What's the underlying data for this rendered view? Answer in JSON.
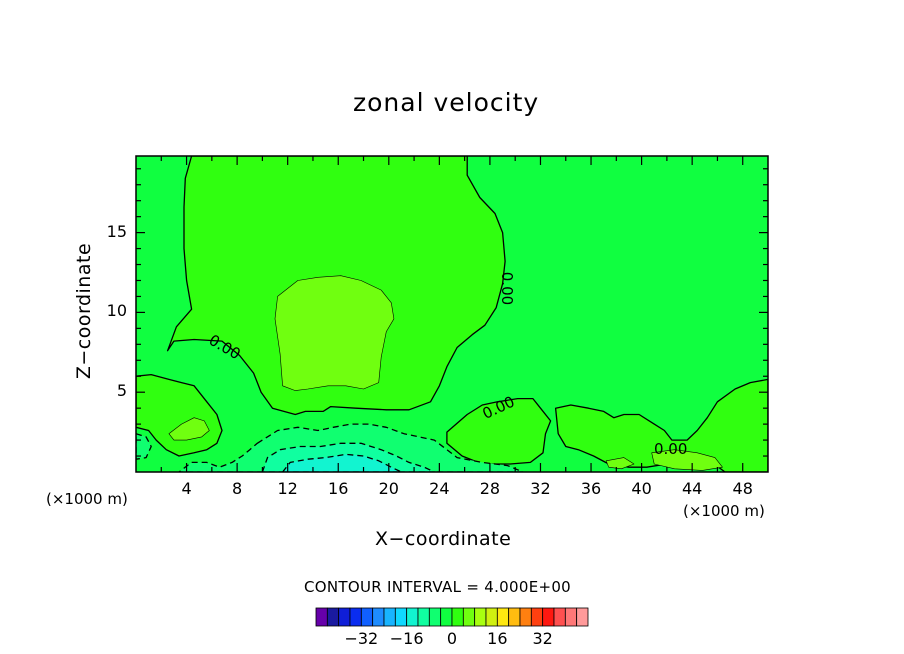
{
  "chart_data": {
    "type": "contour",
    "title": "zonal velocity",
    "xlabel": "X−coordinate",
    "ylabel": "Z−coordinate",
    "x_unit": "(×1000 m)",
    "z_unit": "(×1000 m)",
    "xlim": [
      0,
      50
    ],
    "ylim": [
      0,
      19.8
    ],
    "x_ticks": [
      "4",
      "8",
      "12",
      "16",
      "20",
      "24",
      "28",
      "32",
      "36",
      "40",
      "44",
      "48"
    ],
    "x_tick_values": [
      4,
      8,
      12,
      16,
      20,
      24,
      28,
      32,
      36,
      40,
      44,
      48
    ],
    "y_ticks": [
      "5",
      "10",
      "15"
    ],
    "y_tick_values": [
      5,
      10,
      15
    ],
    "contour_interval_label": "CONTOUR INTERVAL =  4.000E+00",
    "contour_interval": 4.0,
    "contour_labels": [
      {
        "text": "0.00",
        "x": 7.0,
        "z": 7.8,
        "rotate": 30
      },
      {
        "text": "0.00",
        "x": 29.3,
        "z": 11.5,
        "rotate": 90
      },
      {
        "text": "0.00",
        "x": 28.7,
        "z": 4.0,
        "rotate": -25
      },
      {
        "text": "0.00",
        "x": 42.3,
        "z": 1.4,
        "rotate": 0
      }
    ],
    "colorbar": {
      "colors": [
        "#6600aa",
        "#1a1aa0",
        "#0f1ed8",
        "#0a2df0",
        "#1060ff",
        "#1e8cff",
        "#18b4ff",
        "#10d8ff",
        "#12f4d0",
        "#10ffa0",
        "#10ff70",
        "#10ff40",
        "#30ff10",
        "#70ff10",
        "#a8ff10",
        "#d0f010",
        "#ffe810",
        "#ffbc10",
        "#ff8010",
        "#ff4010",
        "#ff1810",
        "#ff5050",
        "#ff7878",
        "#ff9a9a"
      ],
      "tick_labels": [
        "−32",
        "−16",
        "0",
        "16",
        "32"
      ],
      "tick_values": [
        -32,
        -16,
        0,
        16,
        32
      ],
      "vmin": -48,
      "vmax": 48
    },
    "regions": [
      {
        "level": 0,
        "color": "#10ff40",
        "contour": "background"
      },
      {
        "level": 4,
        "color": "#30ff10",
        "contour": "solid",
        "points": [
          [
            4.4,
            19.8
          ],
          [
            26.2,
            19.8
          ],
          [
            26.2,
            18.6
          ],
          [
            27.2,
            17.2
          ],
          [
            28.4,
            16.2
          ],
          [
            29.0,
            15.0
          ],
          [
            29.2,
            13.2
          ],
          [
            29.0,
            11.8
          ],
          [
            28.5,
            10.3
          ],
          [
            27.6,
            9.2
          ],
          [
            26.6,
            8.6
          ],
          [
            25.4,
            7.8
          ],
          [
            24.6,
            6.6
          ],
          [
            24.0,
            5.4
          ],
          [
            23.3,
            4.4
          ],
          [
            21.6,
            3.9
          ],
          [
            19.8,
            3.9
          ],
          [
            17.4,
            4.0
          ],
          [
            15.4,
            4.1
          ],
          [
            14.8,
            3.8
          ],
          [
            13.4,
            3.8
          ],
          [
            12.6,
            3.6
          ],
          [
            10.8,
            4.0
          ],
          [
            9.9,
            5.0
          ],
          [
            9.3,
            6.2
          ],
          [
            8.2,
            7.3
          ],
          [
            6.8,
            8.2
          ],
          [
            4.6,
            8.3
          ],
          [
            3.0,
            8.2
          ],
          [
            2.5,
            7.6
          ],
          [
            3.2,
            9.1
          ],
          [
            4.4,
            10.2
          ],
          [
            4.0,
            12.0
          ],
          [
            3.8,
            14.0
          ],
          [
            3.8,
            16.6
          ],
          [
            3.9,
            18.4
          ]
        ]
      },
      {
        "level": 8,
        "color": "#70ff10",
        "contour": "solid",
        "points": [
          [
            11.2,
            11.0
          ],
          [
            12.8,
            12.0
          ],
          [
            14.4,
            12.2
          ],
          [
            16.2,
            12.3
          ],
          [
            17.8,
            12.0
          ],
          [
            19.4,
            11.4
          ],
          [
            20.2,
            10.6
          ],
          [
            20.4,
            9.6
          ],
          [
            19.8,
            8.8
          ],
          [
            19.4,
            7.2
          ],
          [
            19.2,
            5.6
          ],
          [
            18.0,
            5.2
          ],
          [
            16.6,
            5.4
          ],
          [
            15.2,
            5.4
          ],
          [
            13.6,
            5.2
          ],
          [
            12.6,
            5.1
          ],
          [
            11.6,
            5.4
          ],
          [
            11.4,
            7.4
          ],
          [
            11.0,
            9.6
          ]
        ]
      },
      {
        "level": 4,
        "color": "#30ff10",
        "contour": "solid",
        "points": [
          [
            0,
            6.0
          ],
          [
            1.2,
            6.1
          ],
          [
            2.6,
            5.8
          ],
          [
            3.6,
            5.6
          ],
          [
            4.6,
            5.4
          ],
          [
            5.6,
            4.4
          ],
          [
            6.4,
            3.6
          ],
          [
            6.8,
            2.6
          ],
          [
            6.4,
            1.8
          ],
          [
            5.6,
            1.4
          ],
          [
            4.6,
            1.2
          ],
          [
            3.4,
            1.0
          ],
          [
            2.4,
            1.4
          ],
          [
            1.6,
            2.0
          ],
          [
            1.0,
            2.6
          ],
          [
            0,
            2.8
          ]
        ]
      },
      {
        "level": 8,
        "color": "#70ff10",
        "contour": "solid",
        "points": [
          [
            2.6,
            2.4
          ],
          [
            3.6,
            3.0
          ],
          [
            4.6,
            3.4
          ],
          [
            5.4,
            3.2
          ],
          [
            5.8,
            2.6
          ],
          [
            5.2,
            2.2
          ],
          [
            4.0,
            2.0
          ],
          [
            3.0,
            2.0
          ]
        ]
      },
      {
        "level": 4,
        "color": "#30ff10",
        "contour": "solid",
        "points": [
          [
            24.6,
            2.5
          ],
          [
            26.2,
            3.6
          ],
          [
            27.4,
            4.2
          ],
          [
            28.6,
            4.4
          ],
          [
            30.2,
            4.6
          ],
          [
            31.4,
            4.6
          ],
          [
            32.0,
            4.0
          ],
          [
            32.8,
            3.2
          ],
          [
            32.4,
            2.4
          ],
          [
            32.2,
            1.2
          ],
          [
            31.2,
            0.6
          ],
          [
            29.6,
            0.5
          ],
          [
            27.4,
            0.5
          ],
          [
            25.8,
            1.0
          ],
          [
            24.6,
            1.8
          ]
        ]
      },
      {
        "level": 4,
        "color": "#30ff10",
        "contour": "solid",
        "points": [
          [
            33.2,
            4.0
          ],
          [
            34.4,
            4.2
          ],
          [
            35.8,
            4.0
          ],
          [
            37.0,
            3.8
          ],
          [
            37.8,
            3.4
          ],
          [
            38.6,
            3.6
          ],
          [
            39.8,
            3.6
          ],
          [
            41.0,
            3.0
          ],
          [
            41.8,
            2.6
          ],
          [
            42.4,
            2.0
          ],
          [
            43.6,
            2.0
          ],
          [
            44.4,
            2.6
          ],
          [
            45.2,
            3.4
          ],
          [
            46.0,
            4.4
          ],
          [
            47.4,
            5.2
          ],
          [
            48.6,
            5.6
          ],
          [
            50,
            5.8
          ],
          [
            50,
            0
          ],
          [
            46.6,
            0
          ],
          [
            45.4,
            0.7
          ],
          [
            44.2,
            0.8
          ],
          [
            42.8,
            0.6
          ],
          [
            40.4,
            0.3
          ],
          [
            39.0,
            0.3
          ],
          [
            37.4,
            0.5
          ],
          [
            36.2,
            1.0
          ],
          [
            35.0,
            1.4
          ],
          [
            34.0,
            1.6
          ],
          [
            33.4,
            2.4
          ]
        ]
      },
      {
        "level": 8,
        "color": "#70ff10",
        "contour": "solid",
        "points": [
          [
            40.8,
            1.2
          ],
          [
            42.6,
            1.4
          ],
          [
            44.4,
            1.2
          ],
          [
            45.8,
            0.9
          ],
          [
            46.4,
            0.3
          ],
          [
            44.8,
            0.1
          ],
          [
            42.6,
            0.2
          ],
          [
            41.0,
            0.5
          ]
        ]
      },
      {
        "level": 8,
        "color": "#70ff10",
        "contour": "solid",
        "points": [
          [
            37.2,
            0.7
          ],
          [
            38.6,
            0.9
          ],
          [
            39.4,
            0.5
          ],
          [
            38.4,
            0.2
          ],
          [
            37.4,
            0.3
          ]
        ]
      },
      {
        "level": -4,
        "color": "#10ff70",
        "contour": "dashed",
        "points": [
          [
            9.6,
            1.8
          ],
          [
            11.2,
            2.6
          ],
          [
            12.8,
            2.8
          ],
          [
            14.4,
            2.6
          ],
          [
            15.6,
            2.8
          ],
          [
            17.0,
            3.0
          ],
          [
            18.4,
            3.0
          ],
          [
            19.8,
            2.8
          ],
          [
            21.2,
            2.4
          ],
          [
            22.4,
            2.2
          ],
          [
            23.6,
            2.0
          ],
          [
            24.6,
            1.4
          ],
          [
            25.4,
            0.9
          ],
          [
            27.4,
            0.6
          ],
          [
            29.4,
            0.4
          ],
          [
            30.6,
            0
          ],
          [
            3.4,
            0
          ],
          [
            4.4,
            0.6
          ],
          [
            5.6,
            0.6
          ],
          [
            6.6,
            0.3
          ],
          [
            7.6,
            0.6
          ],
          [
            8.4,
            1.0
          ],
          [
            9.0,
            1.4
          ]
        ]
      },
      {
        "level": -4,
        "color": "#10ff70",
        "contour": "dashed",
        "points": [
          [
            0,
            2.4
          ],
          [
            0.8,
            2.2
          ],
          [
            1.2,
            1.6
          ],
          [
            0.8,
            0.9
          ],
          [
            0,
            0.8
          ]
        ]
      },
      {
        "level": -8,
        "color": "#10ffa0",
        "contour": "dashed",
        "points": [
          [
            10.0,
            0
          ],
          [
            10.4,
            0.9
          ],
          [
            11.4,
            1.4
          ],
          [
            13.0,
            1.6
          ],
          [
            14.6,
            1.6
          ],
          [
            16.2,
            1.8
          ],
          [
            17.8,
            1.8
          ],
          [
            19.4,
            1.4
          ],
          [
            20.6,
            1.0
          ],
          [
            21.6,
            0.6
          ],
          [
            22.8,
            0.3
          ],
          [
            23.6,
            0
          ]
        ]
      },
      {
        "level": -12,
        "color": "#12f4d0",
        "contour": "dashed",
        "points": [
          [
            11.6,
            0
          ],
          [
            12.2,
            0.6
          ],
          [
            13.6,
            0.8
          ],
          [
            15.0,
            0.9
          ],
          [
            16.6,
            1.1
          ],
          [
            18.0,
            1.0
          ],
          [
            19.2,
            0.7
          ],
          [
            20.2,
            0.3
          ],
          [
            21.0,
            0
          ]
        ]
      }
    ]
  }
}
